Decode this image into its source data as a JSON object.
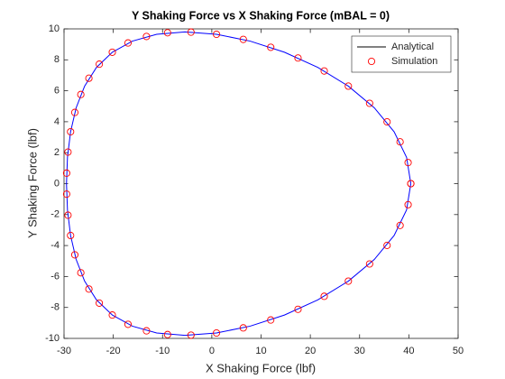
{
  "chart_data": {
    "type": "line",
    "title": "Y Shaking Force vs X Shaking Force (mBAL = 0)",
    "xlabel": "X Shaking Force (lbf)",
    "ylabel": "Y Shaking Force (lbf)",
    "xlim": [
      -30,
      50
    ],
    "xticks": [
      -30,
      -20,
      -10,
      0,
      10,
      20,
      30,
      40,
      50
    ],
    "ylim": [
      -10,
      10
    ],
    "yticks": [
      -10,
      -8,
      -6,
      -4,
      -2,
      0,
      2,
      4,
      6,
      8,
      10
    ],
    "legend": "northeast",
    "series": [
      {
        "name": "Analytical",
        "type": "line",
        "color": "#0000ff",
        "x": [
          40.4,
          39.54,
          37.01,
          32.99,
          27.72,
          21.52,
          14.75,
          7.78,
          0.95,
          -5.45,
          -11.19,
          -16.12,
          -20.2,
          -23.42,
          -25.82,
          -27.54,
          -28.67,
          -29.3,
          -29.5,
          -29.3,
          -28.67,
          -27.54,
          -25.82,
          -23.42,
          -20.2,
          -16.12,
          -11.19,
          -5.45,
          0.95,
          7.78,
          14.75,
          21.52,
          27.72,
          32.99,
          37.01,
          39.54,
          40.4
        ],
        "y": [
          0,
          1.7,
          3.35,
          4.9,
          6.3,
          7.51,
          8.49,
          9.21,
          9.65,
          9.8,
          9.65,
          9.21,
          8.49,
          7.51,
          6.3,
          4.9,
          3.35,
          1.7,
          0,
          -1.7,
          -3.35,
          -4.9,
          -6.3,
          -7.51,
          -8.49,
          -9.21,
          -9.65,
          -9.8,
          -9.65,
          -9.21,
          -8.49,
          -7.51,
          -6.3,
          -4.9,
          -3.35,
          -1.7,
          0
        ]
      },
      {
        "name": "Simulation",
        "type": "scatter",
        "color": "#ff0000",
        "x": [
          40.4,
          39.85,
          38.22,
          35.58,
          32.03,
          27.72,
          22.82,
          17.5,
          11.96,
          6.39,
          0.95,
          -4.22,
          -8.98,
          -13.26,
          -17.01,
          -20.2,
          -22.84,
          -24.95,
          -26.59,
          -27.81,
          -28.67,
          -29.2,
          -29.47,
          -29.47,
          -29.2,
          -28.67,
          -27.81,
          -26.59,
          -24.95,
          -22.84,
          -20.2,
          -17.01,
          -13.26,
          -8.98,
          -4.22,
          0.95,
          6.39,
          11.96,
          17.5,
          22.82,
          27.72,
          32.03,
          35.58,
          38.22,
          39.85,
          40.4
        ],
        "y": [
          0,
          1.36,
          2.7,
          3.99,
          5.19,
          6.3,
          7.28,
          8.12,
          8.81,
          9.32,
          9.65,
          9.79,
          9.75,
          9.51,
          9.09,
          8.49,
          7.72,
          6.81,
          5.76,
          4.6,
          3.35,
          2.04,
          0.68,
          -0.68,
          -2.04,
          -3.35,
          -4.6,
          -5.76,
          -6.81,
          -7.72,
          -8.49,
          -9.09,
          -9.51,
          -9.75,
          -9.79,
          -9.65,
          -9.32,
          -8.81,
          -8.12,
          -7.28,
          -6.3,
          -5.19,
          -3.99,
          -2.7,
          -1.36,
          0
        ]
      }
    ]
  }
}
